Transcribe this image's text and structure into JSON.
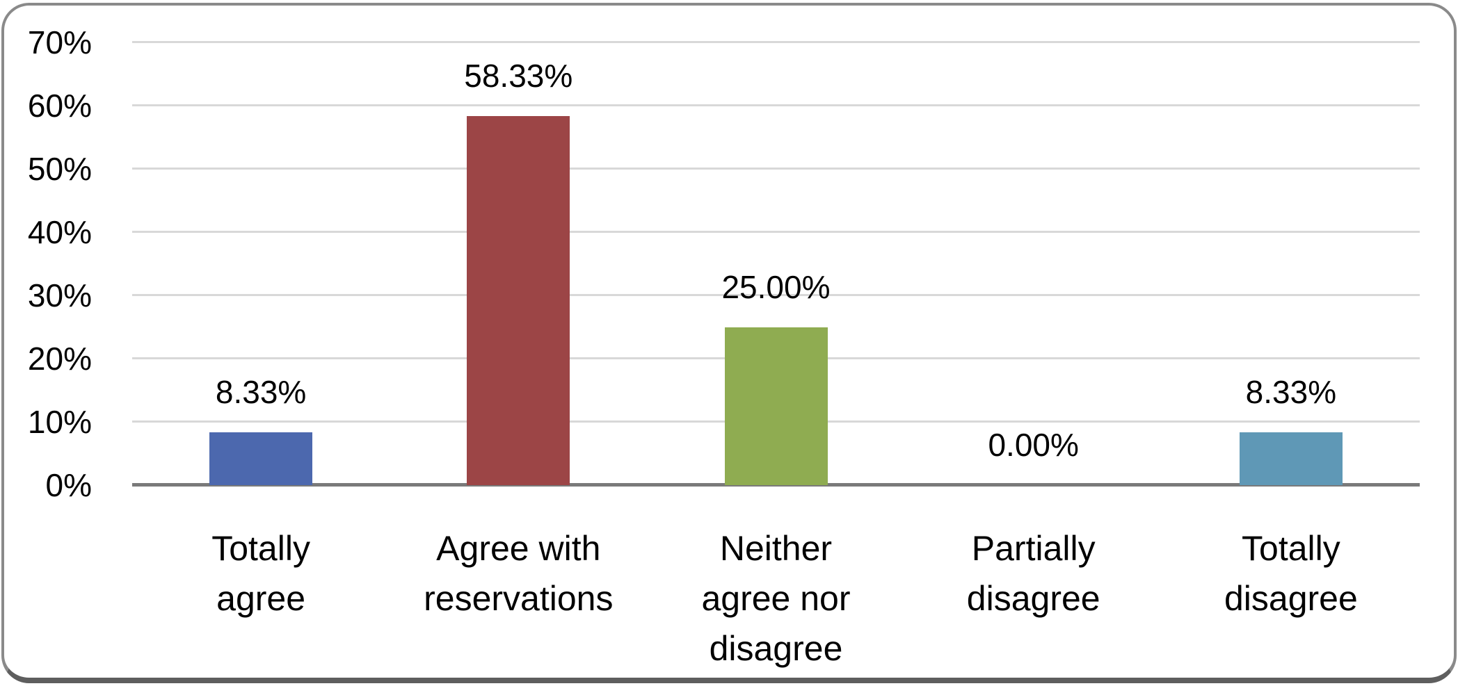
{
  "chart_data": {
    "type": "bar",
    "title": "",
    "xlabel": "",
    "ylabel": "",
    "categories": [
      "Totally agree",
      "Agree with reservations",
      "Neither agree nor disagree",
      "Partially disagree",
      "Totally disagree"
    ],
    "category_display": [
      "Totally\nagree",
      "Agree with\nreservations",
      "Neither\nagree nor\ndisagree",
      "Partially\ndisagree",
      "Totally\ndisagree"
    ],
    "values": [
      8.33,
      58.33,
      25.0,
      0.0,
      8.33
    ],
    "value_labels": [
      "8.33%",
      "58.33%",
      "25.00%",
      "0.00%",
      "8.33%"
    ],
    "bar_colors": [
      "#4C68AE",
      "#9C4546",
      "#8FAC51",
      null,
      "#5F98B6"
    ],
    "ylim": [
      0,
      70
    ],
    "ytick_step": 10,
    "ytick_labels": [
      "0%",
      "10%",
      "20%",
      "30%",
      "40%",
      "50%",
      "60%",
      "70%"
    ],
    "grid": "horizontal",
    "legend": "none",
    "data_labels": true
  },
  "theme": {
    "background": "#FFFFFF",
    "gridline_color": "#D8D8D8",
    "axis_line_color": "#7A7A7A",
    "frame_border_color": "#8A8A8A",
    "frame_bottom_color": "#5E5E5E",
    "text_color": "#000000"
  }
}
